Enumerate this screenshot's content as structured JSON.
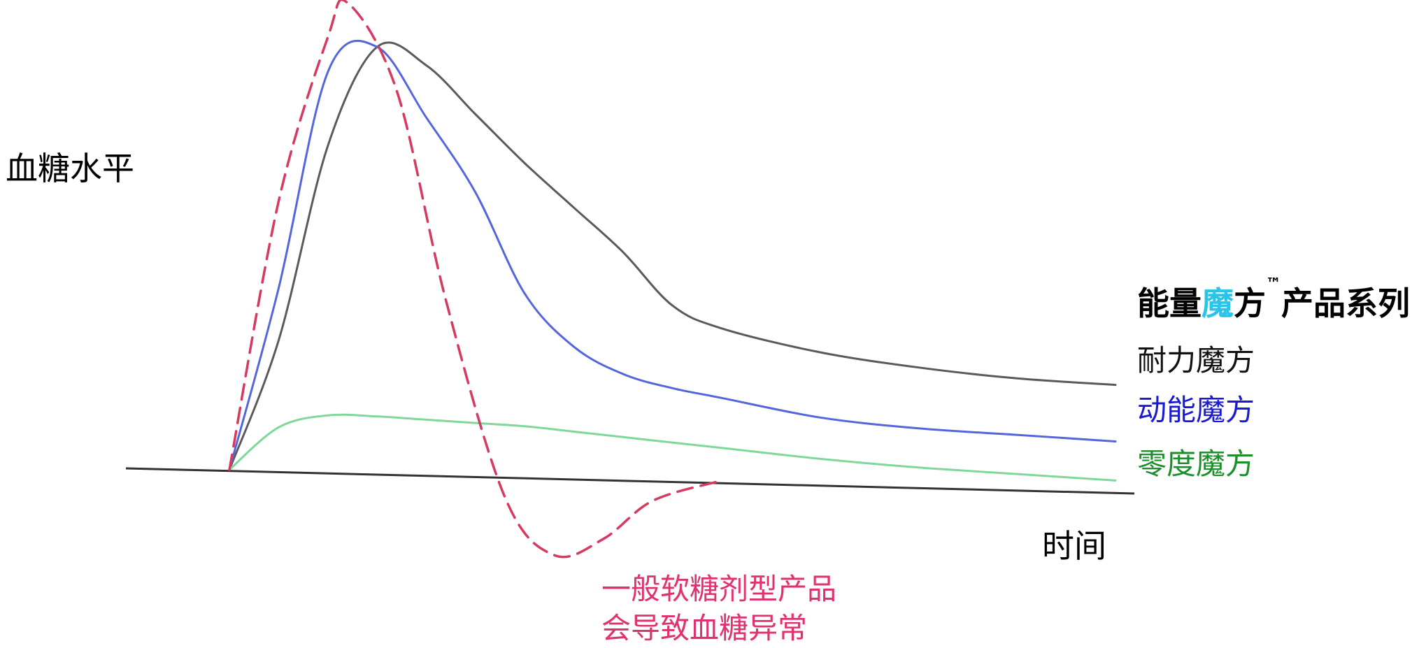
{
  "chart_data": {
    "type": "line",
    "xlabel": "时间",
    "ylabel": "血糖水平",
    "grid": false,
    "legend": {
      "title_parts": [
        "能量",
        "魔",
        "方",
        "™",
        "产品系列"
      ],
      "title_highlight_color": "#29c4e8",
      "placement": "right",
      "items": [
        {
          "label": "耐力魔方",
          "color": "#111111"
        },
        {
          "label": "动能魔方",
          "color": "#1a1ad6"
        },
        {
          "label": "零度魔方",
          "color": "#1a8f2a"
        }
      ]
    },
    "series": [
      {
        "name": "耐力魔方",
        "color": "#5a5a5a",
        "x": [
          0,
          0.5,
          1,
          1.5,
          2,
          2.5,
          3,
          3.5,
          4,
          4.5,
          5,
          6,
          7,
          8,
          9
        ],
        "y": [
          0,
          30,
          75,
          98,
          94,
          83,
          72,
          62,
          52,
          40,
          35,
          30,
          27,
          25,
          24
        ]
      },
      {
        "name": "动能魔方",
        "color": "#5566dd",
        "x": [
          0,
          0.5,
          1,
          1.5,
          2,
          2.5,
          3,
          3.5,
          4,
          4.5,
          5,
          6,
          7,
          8,
          9
        ],
        "y": [
          0,
          42,
          92,
          98,
          82,
          65,
          42,
          30,
          24,
          21,
          19,
          15,
          13,
          12,
          11
        ]
      },
      {
        "name": "零度魔方",
        "color": "#7fd89a",
        "x": [
          0,
          0.5,
          1,
          1.5,
          2,
          2.5,
          3,
          3.5,
          4,
          4.5,
          5,
          6,
          7,
          8,
          9
        ],
        "y": [
          0,
          10,
          13,
          13,
          12.5,
          12,
          11.5,
          10.5,
          9.5,
          8.5,
          7.5,
          5.5,
          4,
          3,
          2
        ]
      },
      {
        "name": "一般软糖剂型产品",
        "color": "#d63a5e",
        "dashed": true,
        "x": [
          0,
          0.5,
          1,
          1.2,
          1.7,
          2.2,
          2.8,
          3.3,
          3.8,
          4.3,
          5.0
        ],
        "y": [
          0,
          62,
          100,
          108,
          88,
          40,
          -5,
          -18,
          -14,
          -5,
          0
        ]
      }
    ],
    "ylim": [
      -25,
      115
    ],
    "xlim": [
      0,
      9
    ],
    "annotation": {
      "lines": [
        "一般软糖剂型产品",
        "会导致血糖异常"
      ],
      "color": "#e0326e"
    }
  }
}
